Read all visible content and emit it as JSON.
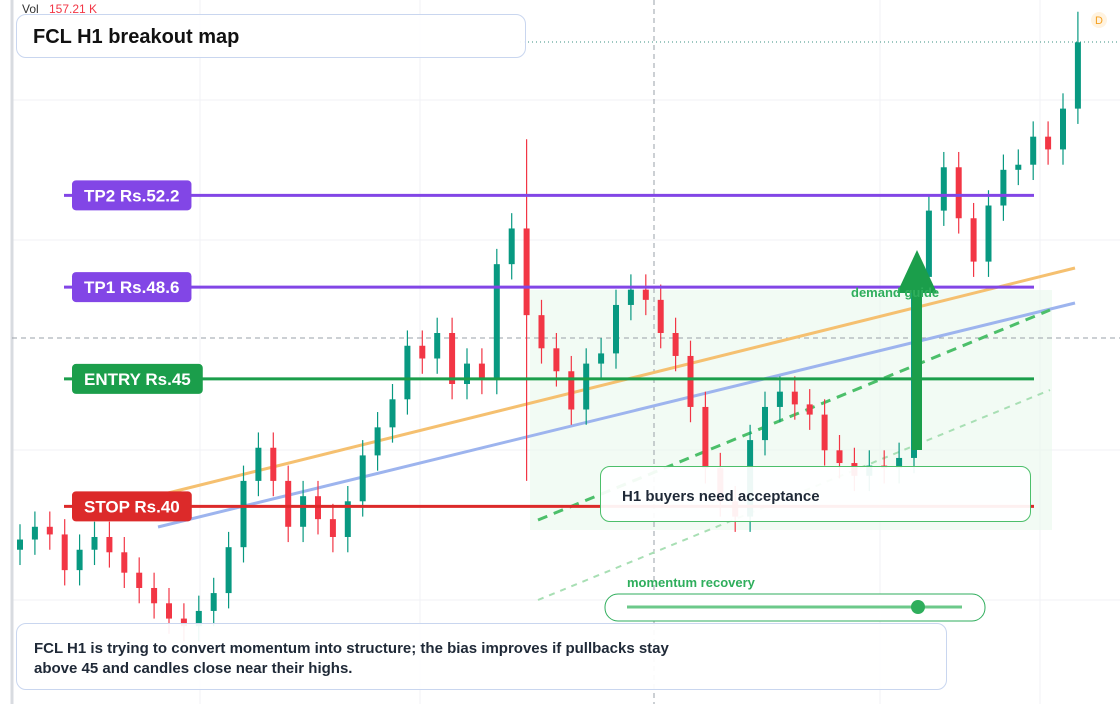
{
  "chart_data": {
    "type": "candlestick",
    "title": "FCL H1 breakout map",
    "volume_label": "Vol",
    "volume_value": "157.21 K",
    "badge": "D",
    "ylim": [
      32.25,
      59.86
    ],
    "up_color": "#089981",
    "down_color": "#f23645",
    "series": {
      "open": [
        38.3,
        38.7,
        39.2,
        38.9,
        37.5,
        38.3,
        38.8,
        38.2,
        37.4,
        36.8,
        36.2,
        35.6,
        35.3,
        35.9,
        36.6,
        38.4,
        41.0,
        42.3,
        41.0,
        39.2,
        40.4,
        39.5,
        38.8,
        40.2,
        42.0,
        43.1,
        44.2,
        46.3,
        45.8,
        46.8,
        44.8,
        45.6,
        45.0,
        49.5,
        50.9,
        47.5,
        46.2,
        45.3,
        43.8,
        45.6,
        46.0,
        47.9,
        48.5,
        48.1,
        46.8,
        45.9,
        43.9,
        41.5,
        40.2,
        39.6,
        42.6,
        43.9,
        44.5,
        44.0,
        43.6,
        42.2,
        41.7,
        41.2,
        41.6,
        41.5,
        41.9,
        49.0,
        51.6,
        53.3,
        51.3,
        49.6,
        51.8,
        53.2,
        53.4,
        54.5,
        54.0,
        55.6
      ],
      "high": [
        39.3,
        39.8,
        39.8,
        39.5,
        38.9,
        39.4,
        39.4,
        38.8,
        38.0,
        37.4,
        36.8,
        36.2,
        36.5,
        37.2,
        39.0,
        41.6,
        42.9,
        42.9,
        41.6,
        41.0,
        41.0,
        40.1,
        40.8,
        42.6,
        43.7,
        44.8,
        46.9,
        46.9,
        47.4,
        47.4,
        46.2,
        46.2,
        50.1,
        51.5,
        54.4,
        48.1,
        46.8,
        45.9,
        46.2,
        46.6,
        48.5,
        49.1,
        49.1,
        48.7,
        47.4,
        46.5,
        44.5,
        42.1,
        40.8,
        43.2,
        44.5,
        45.1,
        45.1,
        44.6,
        44.2,
        42.8,
        42.3,
        42.2,
        42.2,
        42.5,
        49.6,
        52.2,
        53.9,
        53.9,
        51.9,
        52.4,
        53.8,
        54.0,
        55.1,
        55.1,
        56.2,
        59.4
      ],
      "low": [
        37.7,
        38.1,
        38.3,
        36.9,
        36.9,
        37.7,
        37.6,
        36.8,
        36.2,
        35.6,
        35.0,
        34.7,
        34.7,
        35.3,
        36.0,
        37.8,
        40.4,
        40.4,
        38.6,
        38.6,
        38.9,
        38.2,
        38.2,
        39.6,
        41.4,
        42.5,
        43.6,
        45.2,
        45.2,
        44.2,
        44.2,
        44.4,
        44.4,
        48.9,
        41.0,
        45.6,
        44.7,
        43.2,
        43.2,
        45.0,
        45.4,
        47.3,
        47.5,
        46.2,
        45.3,
        43.3,
        40.9,
        39.6,
        39.0,
        39.0,
        42.0,
        43.3,
        43.4,
        43.0,
        41.6,
        41.1,
        40.6,
        40.6,
        40.9,
        40.9,
        41.3,
        48.4,
        51.0,
        50.7,
        49.0,
        49.0,
        51.2,
        52.6,
        52.8,
        53.4,
        53.4,
        55.0
      ],
      "close": [
        38.7,
        39.2,
        38.9,
        37.5,
        38.3,
        38.8,
        38.2,
        37.4,
        36.8,
        36.2,
        35.6,
        35.3,
        35.9,
        36.6,
        38.4,
        41.0,
        42.3,
        41.0,
        39.2,
        40.4,
        39.5,
        38.8,
        40.2,
        42.0,
        43.1,
        44.2,
        46.3,
        45.8,
        46.8,
        44.8,
        45.6,
        45.0,
        49.5,
        50.9,
        47.5,
        46.2,
        45.3,
        43.8,
        45.6,
        46.0,
        47.9,
        48.5,
        48.1,
        46.8,
        45.9,
        43.9,
        41.5,
        40.2,
        39.6,
        42.6,
        43.9,
        44.5,
        44.0,
        43.6,
        42.2,
        41.7,
        41.2,
        41.6,
        41.5,
        41.9,
        49.0,
        51.6,
        53.3,
        51.3,
        49.6,
        51.8,
        53.2,
        53.4,
        54.5,
        54.0,
        55.6,
        58.2
      ]
    },
    "levels": [
      {
        "label": "TP2 Rs.52.2",
        "value": 52.2,
        "color": "#8246e6"
      },
      {
        "label": "TP1 Rs.48.6",
        "value": 48.6,
        "color": "#8246e6"
      },
      {
        "label": "ENTRY Rs.45",
        "value": 45,
        "color": "#1b9e4b"
      },
      {
        "label": "STOP Rs.40",
        "value": 40,
        "color": "#dc2a2a"
      }
    ],
    "annotations": {
      "demand": "demand guide",
      "acceptance": "H1 buyers need acceptance",
      "momentum": "momentum recovery",
      "note": "FCL H1 is trying to convert momentum into structure; the bias improves if pullbacks stay above 45 and candles close near their highs."
    }
  }
}
